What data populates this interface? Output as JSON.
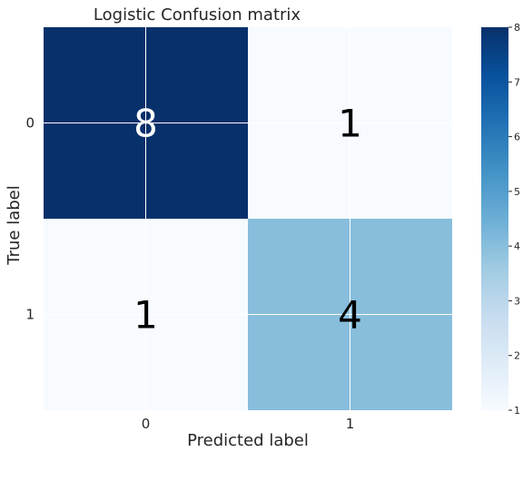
{
  "chart_data": {
    "type": "heatmap",
    "title": "Logistic Confusion matrix",
    "xlabel": "Predicted label",
    "ylabel": "True label",
    "x_categories": [
      "0",
      "1"
    ],
    "y_categories": [
      "0",
      "1"
    ],
    "values": [
      [
        8,
        1
      ],
      [
        1,
        4
      ]
    ],
    "value_labels": [
      [
        "8",
        "1"
      ],
      [
        "1",
        "4"
      ]
    ],
    "colormap": "Blues",
    "colorbar": {
      "min": 1,
      "max": 8,
      "ticks": [
        1,
        2,
        3,
        4,
        5,
        6,
        7,
        8
      ],
      "tick_labels": [
        "1",
        "2",
        "3",
        "4",
        "5",
        "6",
        "7",
        "8"
      ]
    },
    "grid": true,
    "colors": {
      "low": "#f7fbff",
      "high": "#08306b",
      "text_dark": "#000000",
      "text_light": "#ffffff"
    }
  }
}
